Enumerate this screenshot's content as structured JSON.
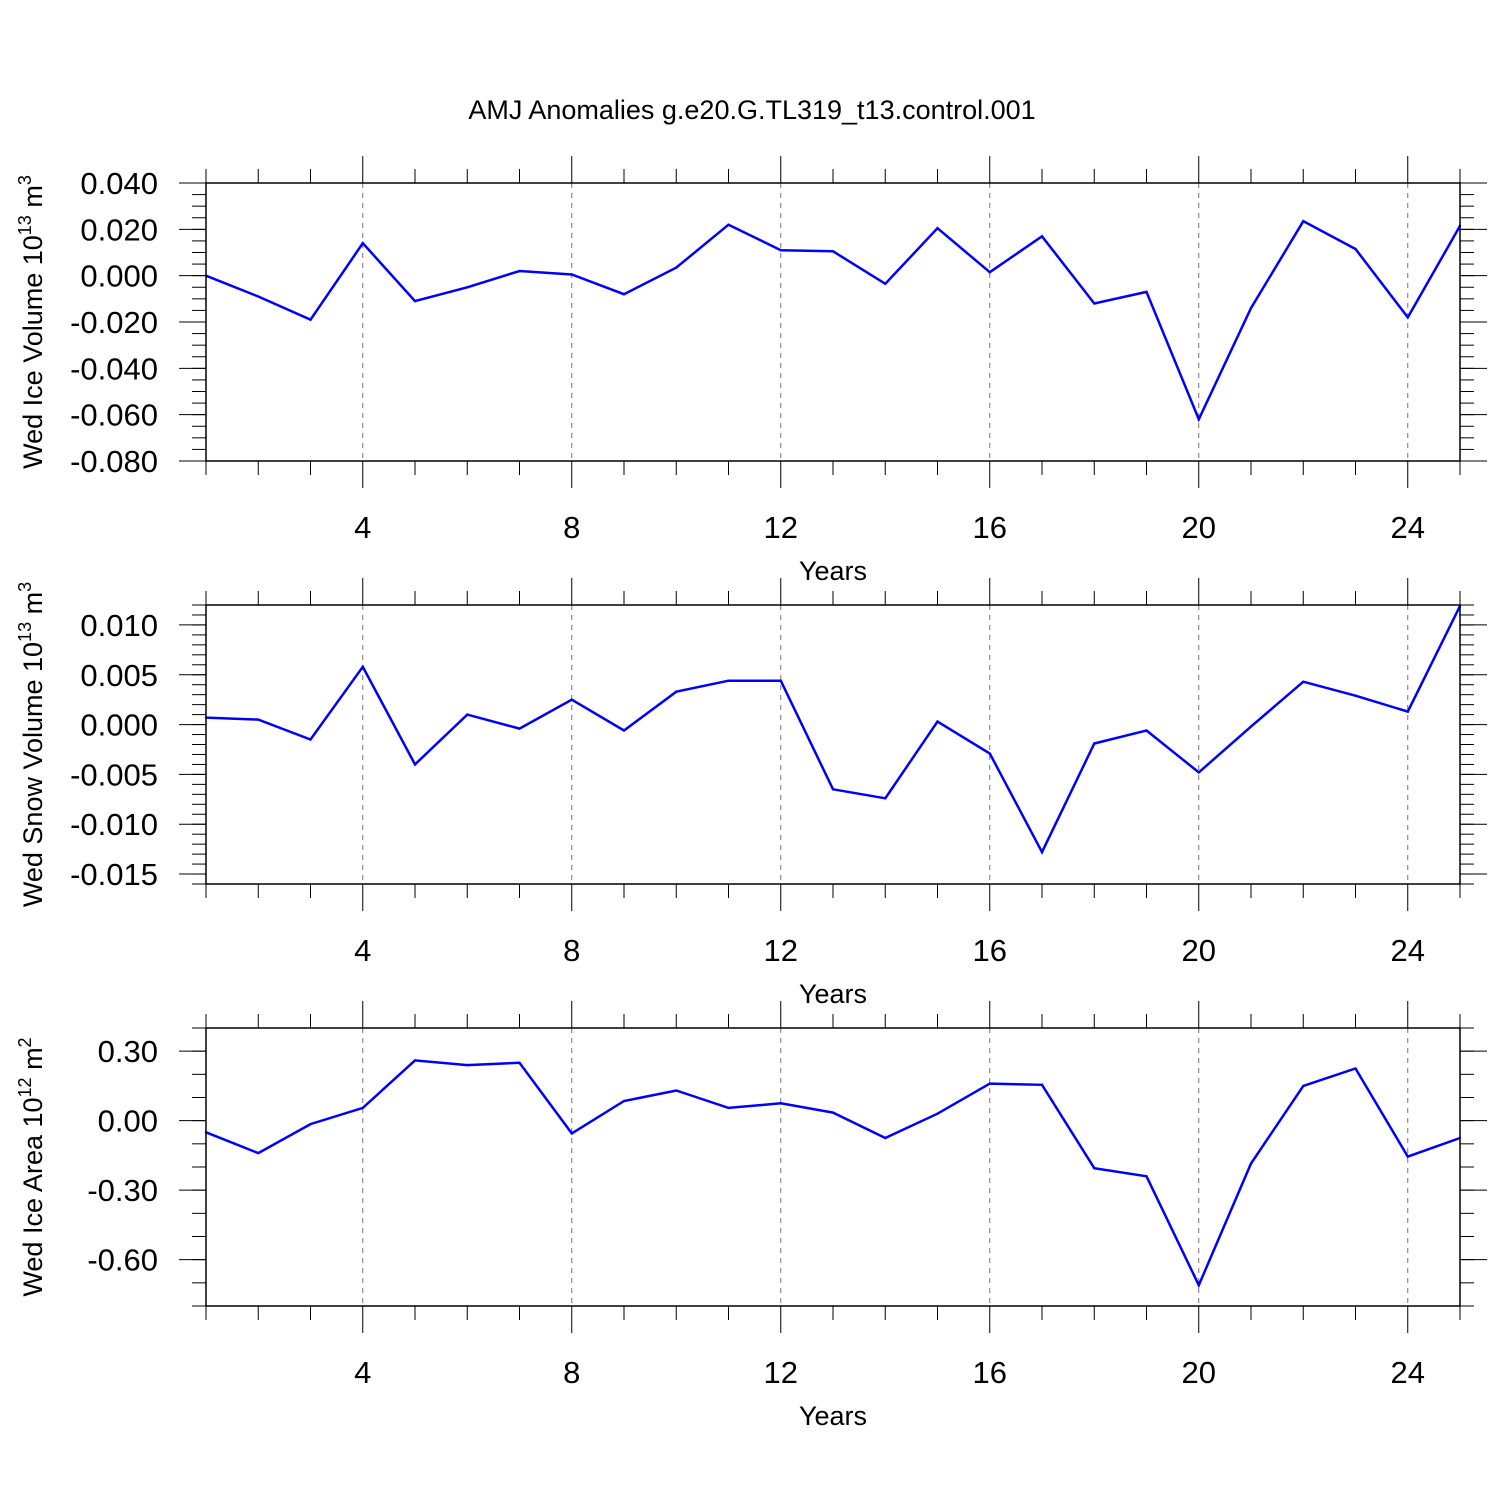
{
  "chart_data": {
    "title": "AMJ Anomalies g.e20.G.TL319_t13.control.001",
    "line_color": "#0000ff",
    "panels": [
      {
        "type": "line",
        "ylabel_prefix": "Wed Ice Volume 10",
        "ylabel_exp": "13",
        "ylabel_unit": " m",
        "ylabel_unit_exp": "3",
        "xlabel": "Years",
        "xlim": [
          1,
          25
        ],
        "ylim": [
          -0.08,
          0.04
        ],
        "yticks": [
          -0.08,
          -0.06,
          -0.04,
          -0.02,
          0.0,
          0.02,
          0.04
        ],
        "yticklabels": [
          "-0.080",
          "-0.060",
          "-0.040",
          "-0.020",
          "0.000",
          "0.020",
          "0.040"
        ],
        "yminor_step": 0.005,
        "xticks": [
          4,
          8,
          12,
          16,
          20,
          24
        ],
        "xticklabels": [
          "4",
          "8",
          "12",
          "16",
          "20",
          "24"
        ],
        "x": [
          1,
          2,
          3,
          4,
          5,
          6,
          7,
          8,
          9,
          10,
          11,
          12,
          13,
          14,
          15,
          16,
          17,
          18,
          19,
          20,
          21,
          22,
          23,
          24,
          25
        ],
        "values": [
          0.0,
          -0.009,
          -0.019,
          0.014,
          -0.011,
          -0.005,
          0.002,
          0.0005,
          -0.008,
          0.0035,
          0.022,
          0.011,
          0.0105,
          -0.0035,
          0.0205,
          0.0015,
          0.017,
          -0.012,
          -0.007,
          -0.062,
          -0.014,
          0.0235,
          0.0115,
          -0.018,
          0.0215
        ]
      },
      {
        "type": "line",
        "ylabel_prefix": "Wed Snow Volume 10",
        "ylabel_exp": "13",
        "ylabel_unit": " m",
        "ylabel_unit_exp": "3",
        "xlabel": "Years",
        "xlim": [
          1,
          25
        ],
        "ylim": [
          -0.016,
          0.012
        ],
        "yticks": [
          -0.015,
          -0.01,
          -0.005,
          0.0,
          0.005,
          0.01
        ],
        "yticklabels": [
          "-0.015",
          "-0.010",
          "-0.005",
          "0.000",
          "0.005",
          "0.010"
        ],
        "yminor_step": 0.001,
        "xticks": [
          4,
          8,
          12,
          16,
          20,
          24
        ],
        "xticklabels": [
          "4",
          "8",
          "12",
          "16",
          "20",
          "24"
        ],
        "x": [
          1,
          2,
          3,
          4,
          5,
          6,
          7,
          8,
          9,
          10,
          11,
          12,
          13,
          14,
          15,
          16,
          17,
          18,
          19,
          20,
          21,
          22,
          23,
          24,
          25
        ],
        "values": [
          0.0007,
          0.0005,
          -0.0015,
          0.0058,
          -0.004,
          0.001,
          -0.0004,
          0.0025,
          -0.0006,
          0.0033,
          0.0044,
          0.0044,
          -0.0065,
          -0.0074,
          0.0003,
          -0.0029,
          -0.0128,
          -0.0019,
          -0.0006,
          -0.0048,
          -0.0002,
          0.0043,
          0.0029,
          0.0013,
          0.0119
        ]
      },
      {
        "type": "line",
        "ylabel_prefix": "Wed Ice Area 10",
        "ylabel_exp": "12",
        "ylabel_unit": " m",
        "ylabel_unit_exp": "2",
        "xlabel": "Years",
        "xlim": [
          1,
          25
        ],
        "ylim": [
          -0.8,
          0.4
        ],
        "yticks": [
          -0.6,
          -0.3,
          0.0,
          0.3
        ],
        "yticklabels": [
          "-0.60",
          "-0.30",
          "0.00",
          "0.30"
        ],
        "yminor_step": 0.1,
        "xticks": [
          4,
          8,
          12,
          16,
          20,
          24
        ],
        "xticklabels": [
          "4",
          "8",
          "12",
          "16",
          "20",
          "24"
        ],
        "x": [
          1,
          2,
          3,
          4,
          5,
          6,
          7,
          8,
          9,
          10,
          11,
          12,
          13,
          14,
          15,
          16,
          17,
          18,
          19,
          20,
          21,
          22,
          23,
          24,
          25
        ],
        "values": [
          -0.05,
          -0.14,
          -0.015,
          0.055,
          0.26,
          0.24,
          0.25,
          -0.055,
          0.085,
          0.13,
          0.055,
          0.075,
          0.035,
          -0.075,
          0.03,
          0.16,
          0.155,
          -0.205,
          -0.24,
          -0.71,
          -0.185,
          0.15,
          0.225,
          -0.155,
          -0.075
        ]
      }
    ]
  }
}
